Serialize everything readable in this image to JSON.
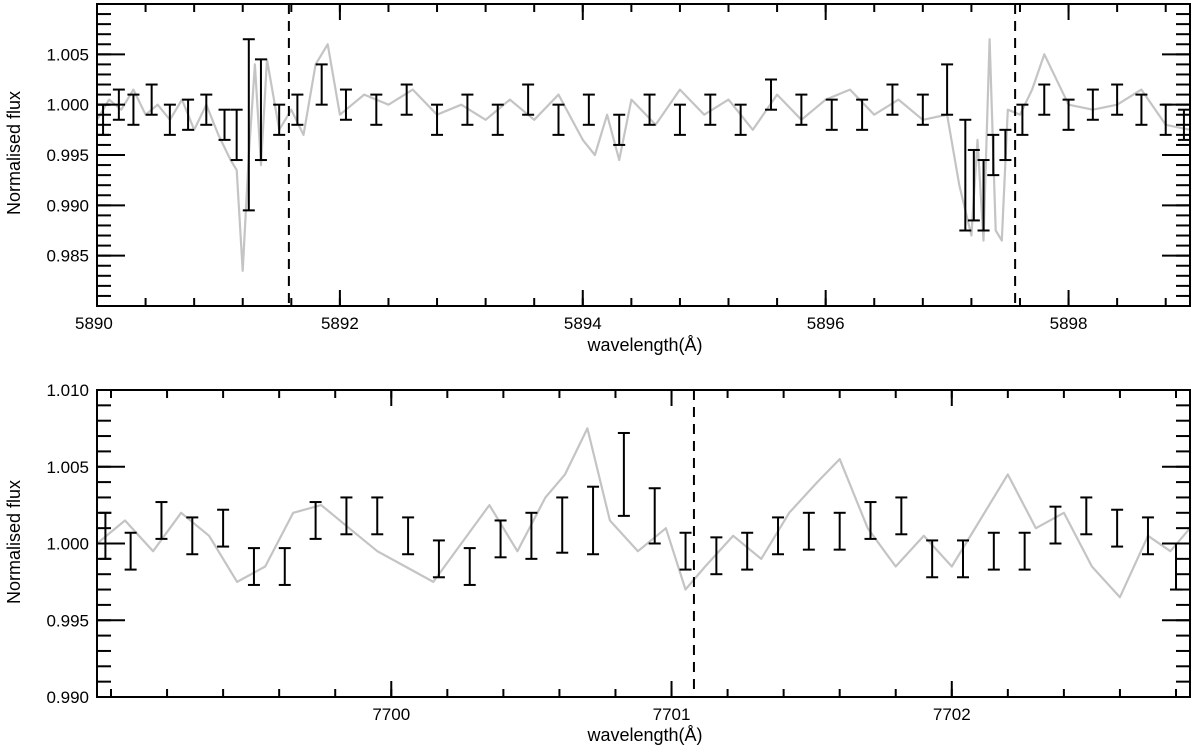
{
  "chart_data": [
    {
      "type": "line",
      "xlabel": "wavelength(Å)",
      "ylabel": "Normalised flux",
      "xlim": [
        5890,
        5899
      ],
      "ylim": [
        0.98,
        1.01
      ],
      "x_ticks": [
        5890,
        5892,
        5894,
        5896,
        5898
      ],
      "x_tick_labels": [
        "5890",
        "5892",
        "5894",
        "5896",
        "5898"
      ],
      "y_ticks": [
        0.985,
        0.99,
        0.995,
        1.0,
        1.005
      ],
      "y_tick_labels": [
        "0.985",
        "0.990",
        "0.995",
        "1.000",
        "1.005"
      ],
      "vlines": [
        5891.58,
        5897.56
      ],
      "series": [
        {
          "style": "gray-line",
          "x": [
            5890.0,
            5890.1,
            5890.2,
            5890.3,
            5890.4,
            5890.5,
            5890.6,
            5890.7,
            5890.8,
            5890.9,
            5891.0,
            5891.1,
            5891.15,
            5891.2,
            5891.25,
            5891.3,
            5891.35,
            5891.4,
            5891.5,
            5891.6,
            5891.7,
            5891.8,
            5891.9,
            5892.0,
            5892.2,
            5892.4,
            5892.6,
            5892.8,
            5893.0,
            5893.2,
            5893.4,
            5893.6,
            5893.8,
            5894.0,
            5894.1,
            5894.2,
            5894.3,
            5894.4,
            5894.6,
            5894.8,
            5895.0,
            5895.2,
            5895.4,
            5895.6,
            5895.8,
            5896.0,
            5896.2,
            5896.4,
            5896.6,
            5896.8,
            5897.0,
            5897.1,
            5897.2,
            5897.25,
            5897.3,
            5897.35,
            5897.4,
            5897.45,
            5897.5,
            5897.6,
            5897.7,
            5897.8,
            5898.0,
            5898.2,
            5898.4,
            5898.6,
            5898.8,
            5899.0
          ],
          "y": [
            0.9985,
            1.0005,
            0.9995,
            1.0015,
            0.999,
            1.0,
            0.9985,
            1.0005,
            0.9975,
            1.0,
            0.997,
            0.9945,
            0.9935,
            0.9835,
            0.995,
            1.004,
            0.994,
            1.0045,
            0.9975,
            0.9995,
            0.997,
            1.004,
            1.006,
            0.999,
            1.001,
            1.0,
            1.0015,
            0.999,
            1.0,
            0.9985,
            1.0005,
            0.9985,
            1.001,
            0.9965,
            0.995,
            0.999,
            0.9945,
            1.0005,
            0.998,
            1.0015,
            0.999,
            1.0005,
            0.9975,
            1.001,
            0.9985,
            1.0005,
            1.0015,
            0.999,
            1.0005,
            0.9985,
            0.999,
            0.992,
            0.987,
            0.9965,
            0.9865,
            1.0065,
            0.9875,
            0.9865,
            0.9995,
            0.999,
            1.0015,
            1.005,
            1.0,
            0.9995,
            1.0,
            1.0015,
            0.998,
            0.9975
          ]
        },
        {
          "style": "errorbars",
          "x": [
            5890.05,
            5890.18,
            5890.3,
            5890.45,
            5890.6,
            5890.75,
            5890.9,
            5891.05,
            5891.15,
            5891.25,
            5891.35,
            5891.5,
            5891.65,
            5891.85,
            5892.05,
            5892.3,
            5892.55,
            5892.8,
            5893.05,
            5893.3,
            5893.55,
            5893.8,
            5894.05,
            5894.3,
            5894.55,
            5894.8,
            5895.05,
            5895.3,
            5895.55,
            5895.8,
            5896.05,
            5896.3,
            5896.55,
            5896.8,
            5897.0,
            5897.15,
            5897.22,
            5897.3,
            5897.38,
            5897.48,
            5897.62,
            5897.8,
            5898.0,
            5898.2,
            5898.4,
            5898.6,
            5898.8,
            5898.95
          ],
          "y": [
            0.9985,
            1.0,
            0.9995,
            1.0005,
            0.9985,
            0.999,
            0.9995,
            0.998,
            0.997,
            0.998,
            0.9995,
            0.9985,
            0.9995,
            1.002,
            1.0,
            0.9995,
            1.0005,
            0.9985,
            0.9995,
            0.9985,
            1.0005,
            0.9985,
            0.9995,
            0.9975,
            0.9995,
            0.9985,
            0.9995,
            0.9985,
            1.001,
            0.9995,
            0.999,
            0.999,
            1.0005,
            0.9995,
            1.0015,
            0.993,
            0.992,
            0.991,
            0.995,
            0.996,
            0.9985,
            1.0005,
            0.999,
            1.0,
            1.0005,
            0.9995,
            0.9985,
            0.998
          ],
          "yerr": [
            0.0015,
            0.0015,
            0.0015,
            0.0015,
            0.0015,
            0.0015,
            0.0015,
            0.0015,
            0.0025,
            0.0085,
            0.005,
            0.0015,
            0.0015,
            0.002,
            0.0015,
            0.0015,
            0.0015,
            0.0015,
            0.0015,
            0.0015,
            0.0015,
            0.0015,
            0.0015,
            0.0015,
            0.0015,
            0.0015,
            0.0015,
            0.0015,
            0.0015,
            0.0015,
            0.0015,
            0.0015,
            0.0015,
            0.0015,
            0.0025,
            0.0055,
            0.0035,
            0.0035,
            0.002,
            0.0015,
            0.0015,
            0.0015,
            0.0015,
            0.0015,
            0.0015,
            0.0015,
            0.0015,
            0.0015
          ]
        }
      ]
    },
    {
      "type": "line",
      "xlabel": "wavelength(Å)",
      "ylabel": "Normalised flux",
      "xlim": [
        7698.95,
        7702.85
      ],
      "ylim": [
        0.99,
        1.01
      ],
      "x_ticks": [
        7700,
        7701,
        7702
      ],
      "x_tick_labels": [
        "7700",
        "7701",
        "7702"
      ],
      "y_ticks": [
        0.99,
        0.995,
        1.0,
        1.005,
        1.01
      ],
      "y_tick_labels": [
        "0.990",
        "0.995",
        "1.000",
        "1.005",
        "1.010"
      ],
      "vlines": [
        7701.08
      ],
      "series": [
        {
          "style": "gray-line",
          "x": [
            7698.95,
            7699.05,
            7699.15,
            7699.25,
            7699.35,
            7699.45,
            7699.55,
            7699.65,
            7699.75,
            7699.85,
            7699.95,
            7700.05,
            7700.15,
            7700.25,
            7700.35,
            7700.45,
            7700.55,
            7700.62,
            7700.7,
            7700.78,
            7700.88,
            7700.98,
            7701.05,
            7701.12,
            7701.22,
            7701.32,
            7701.42,
            7701.52,
            7701.6,
            7701.7,
            7701.8,
            7701.9,
            7702.0,
            7702.1,
            7702.2,
            7702.3,
            7702.4,
            7702.5,
            7702.6,
            7702.7,
            7702.78,
            7702.85
          ],
          "y": [
            1.0,
            1.0015,
            0.9995,
            1.002,
            1.0005,
            0.9975,
            0.9985,
            1.002,
            1.0025,
            1.001,
            0.9995,
            0.9985,
            0.9975,
            1.0,
            1.0025,
            0.9995,
            1.003,
            1.0045,
            1.0075,
            1.0015,
            0.9995,
            1.001,
            0.997,
            0.9985,
            1.0005,
            0.999,
            1.002,
            1.004,
            1.0055,
            1.001,
            0.9985,
            1.0005,
            0.9985,
            1.0015,
            1.0045,
            1.001,
            1.002,
            0.9985,
            0.9965,
            1.0005,
            0.9995,
            1.001
          ]
        },
        {
          "style": "errorbars",
          "x": [
            7698.98,
            7699.07,
            7699.18,
            7699.29,
            7699.4,
            7699.51,
            7699.62,
            7699.73,
            7699.84,
            7699.95,
            7700.06,
            7700.17,
            7700.28,
            7700.39,
            7700.5,
            7700.61,
            7700.72,
            7700.83,
            7700.94,
            7701.05,
            7701.16,
            7701.27,
            7701.38,
            7701.49,
            7701.6,
            7701.71,
            7701.82,
            7701.93,
            7702.04,
            7702.15,
            7702.26,
            7702.37,
            7702.48,
            7702.59,
            7702.7,
            7702.8
          ],
          "y": [
            1.0005,
            0.9995,
            1.0015,
            1.0005,
            1.001,
            0.9985,
            0.9985,
            1.0015,
            1.0018,
            1.0018,
            1.0005,
            0.999,
            0.9985,
            1.0003,
            1.0005,
            1.0012,
            1.0015,
            1.0045,
            1.0018,
            0.9995,
            0.9992,
            0.9995,
            1.0005,
            1.0008,
            1.0008,
            1.0015,
            1.0018,
            0.999,
            0.999,
            0.9995,
            0.9995,
            1.0012,
            1.0018,
            1.001,
            1.0005,
            0.9985
          ],
          "yerr": [
            0.0015,
            0.0012,
            0.0012,
            0.0012,
            0.0012,
            0.0012,
            0.0012,
            0.0012,
            0.0012,
            0.0012,
            0.0012,
            0.0012,
            0.0012,
            0.0012,
            0.0015,
            0.0018,
            0.0022,
            0.0027,
            0.0018,
            0.0012,
            0.0012,
            0.0012,
            0.0012,
            0.0012,
            0.0012,
            0.0012,
            0.0012,
            0.0012,
            0.0012,
            0.0012,
            0.0012,
            0.0012,
            0.0012,
            0.0012,
            0.0012,
            0.0015
          ]
        }
      ]
    }
  ]
}
